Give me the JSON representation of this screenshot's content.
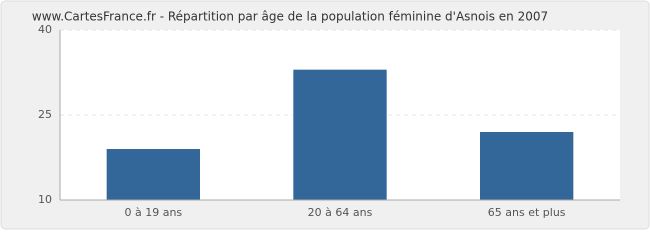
{
  "chart_data": {
    "type": "bar",
    "title": "www.CartesFrance.fr - Répartition par âge de la population féminine d'Asnois en 2007",
    "categories": [
      "0 à 19 ans",
      "20 à 64 ans",
      "65 ans et plus"
    ],
    "values": [
      19,
      33,
      22
    ],
    "color": "#336699",
    "ylim": [
      10,
      40
    ],
    "yticks": [
      10,
      25,
      40
    ],
    "grid": true
  }
}
